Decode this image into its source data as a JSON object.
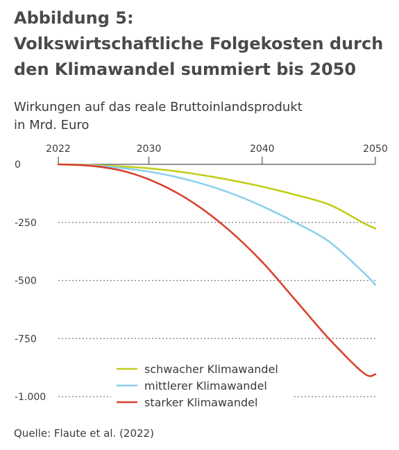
{
  "figure": {
    "label": "Abbildung 5:",
    "title_line1": "Volkswirtschaftliche Folgekosten durch",
    "title_line2": "den Klimawandel summiert bis 2050",
    "subtitle_line1": "Wirkungen auf das reale Bruttoinlandsprodukt",
    "subtitle_line2": "in Mrd. Euro",
    "source": "Quelle: Flaute et al. (2022)"
  },
  "chart_data": {
    "type": "line",
    "title": "Volkswirtschaftliche Folgekosten durch den Klimawandel summiert bis 2050",
    "subtitle": "Wirkungen auf das reale Bruttoinlandsprodukt in Mrd. Euro",
    "xlabel": "",
    "ylabel": "",
    "x_axis_position": "top",
    "x_ticks": [
      2022,
      2030,
      2040,
      2050
    ],
    "y_ticks": [
      0,
      -250,
      -500,
      -750,
      -1000
    ],
    "y_tick_labels": [
      "0",
      "-250",
      "-500",
      "-750",
      "-1.000"
    ],
    "xlim": [
      2022,
      2050
    ],
    "ylim": [
      -1000,
      0
    ],
    "grid": "horizontal dotted",
    "legend_position": "bottom-center",
    "x": [
      2022,
      2025,
      2028,
      2031,
      2034,
      2037,
      2040,
      2043,
      2046,
      2049,
      2050
    ],
    "series": [
      {
        "name": "schwacher Klimawandel",
        "color": "#c3cd1a",
        "values": [
          0,
          -3,
          -10,
          -22,
          -41,
          -66,
          -96,
          -132,
          -175,
          -254,
          -276
        ]
      },
      {
        "name": "mittlerer Klimawandel",
        "color": "#8cd0ee",
        "values": [
          0,
          -5,
          -18,
          -40,
          -74,
          -120,
          -180,
          -252,
          -336,
          -468,
          -519
        ]
      },
      {
        "name": "starker Klimawandel",
        "color": "#d8412c",
        "values": [
          0,
          -7,
          -32,
          -86,
          -168,
          -280,
          -420,
          -588,
          -756,
          -900,
          -904
        ]
      }
    ]
  }
}
